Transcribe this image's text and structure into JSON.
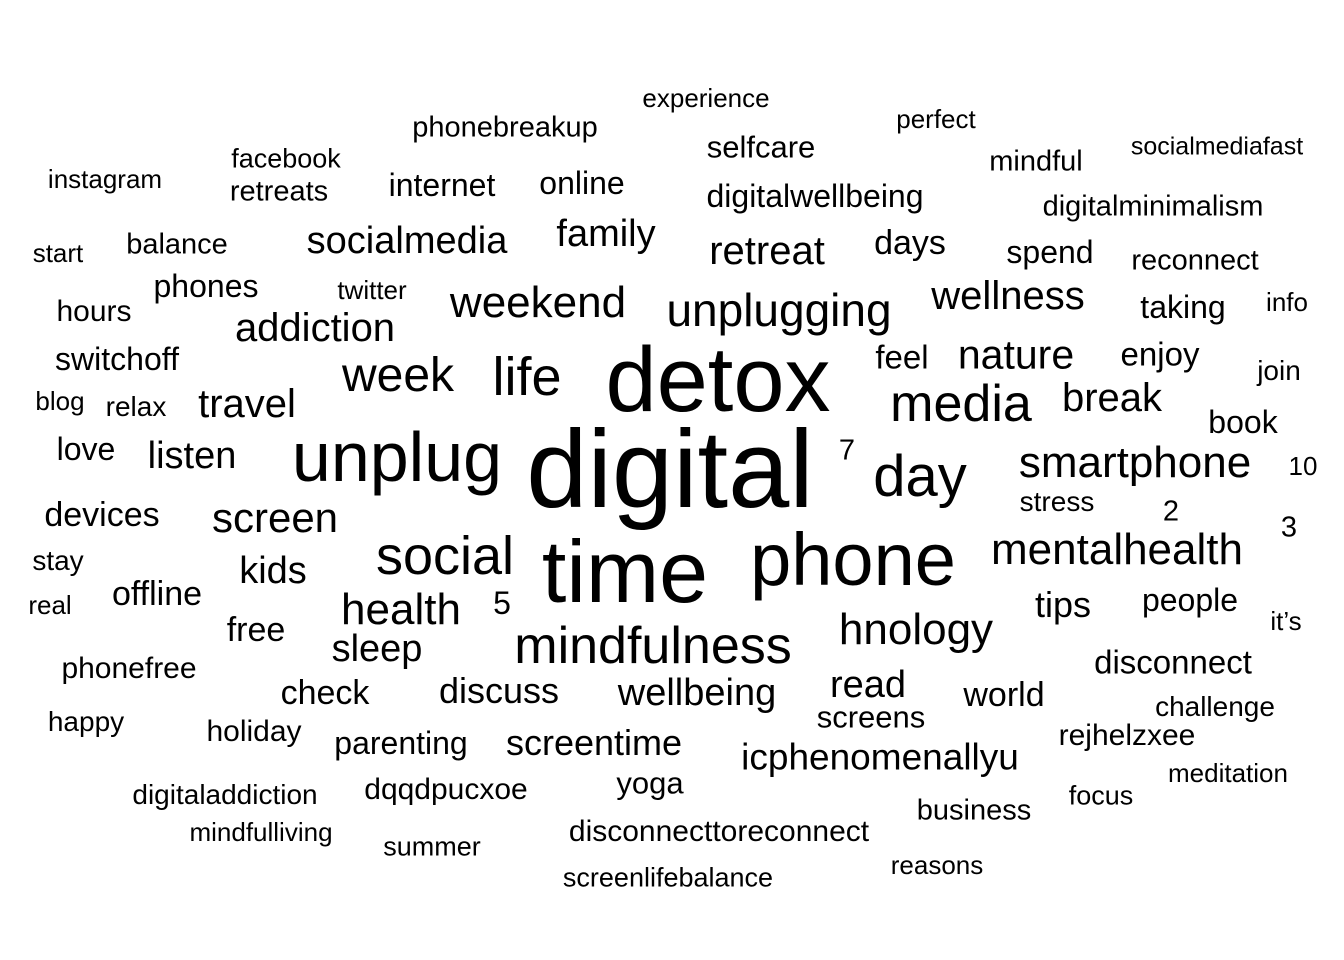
{
  "text_color": "#000000",
  "background": "#ffffff",
  "words": [
    {
      "text": "digital",
      "weight": 110
    },
    {
      "text": "detox",
      "weight": 92
    },
    {
      "text": "time",
      "weight": 88
    },
    {
      "text": "phone",
      "weight": 74
    },
    {
      "text": "unplug",
      "weight": 70
    },
    {
      "text": "social",
      "weight": 54
    },
    {
      "text": "day",
      "weight": 58
    },
    {
      "text": "life",
      "weight": 54
    },
    {
      "text": "media",
      "weight": 52
    },
    {
      "text": "mindfulness",
      "weight": 52
    },
    {
      "text": "week",
      "weight": 48
    },
    {
      "text": "unplugging",
      "weight": 46
    },
    {
      "text": "smartphone",
      "weight": 44
    },
    {
      "text": "mentalhealth",
      "weight": 44
    },
    {
      "text": "weekend",
      "weight": 44
    },
    {
      "text": "health",
      "weight": 44
    },
    {
      "text": "hnology",
      "weight": 44
    },
    {
      "text": "screen",
      "weight": 42
    },
    {
      "text": "nature",
      "weight": 41
    },
    {
      "text": "addiction",
      "weight": 40
    },
    {
      "text": "travel",
      "weight": 40
    },
    {
      "text": "break",
      "weight": 40
    },
    {
      "text": "wellness",
      "weight": 40
    },
    {
      "text": "retreat",
      "weight": 40
    },
    {
      "text": "wellbeing",
      "weight": 38
    },
    {
      "text": "sleep",
      "weight": 38
    },
    {
      "text": "family",
      "weight": 38
    },
    {
      "text": "socialmedia",
      "weight": 38
    },
    {
      "text": "icphenomenallyu",
      "weight": 37
    },
    {
      "text": "kids",
      "weight": 38
    },
    {
      "text": "read",
      "weight": 38
    },
    {
      "text": "listen",
      "weight": 38
    },
    {
      "text": "screentime",
      "weight": 36
    },
    {
      "text": "tips",
      "weight": 36
    },
    {
      "text": "days",
      "weight": 34
    },
    {
      "text": "discuss",
      "weight": 36
    },
    {
      "text": "offline",
      "weight": 34
    },
    {
      "text": "devices",
      "weight": 34
    },
    {
      "text": "world",
      "weight": 34
    },
    {
      "text": "disconnect",
      "weight": 33
    },
    {
      "text": "feel",
      "weight": 33
    },
    {
      "text": "check",
      "weight": 34
    },
    {
      "text": "free",
      "weight": 34
    },
    {
      "text": "enjoy",
      "weight": 33
    },
    {
      "text": "digitalwellbeing",
      "weight": 32
    },
    {
      "text": "screens",
      "weight": 31
    },
    {
      "text": "people",
      "weight": 32
    },
    {
      "text": "parenting",
      "weight": 32
    },
    {
      "text": "taking",
      "weight": 32
    },
    {
      "text": "spend",
      "weight": 32
    },
    {
      "text": "book",
      "weight": 32
    },
    {
      "text": "internet",
      "weight": 32
    },
    {
      "text": "online",
      "weight": 32
    },
    {
      "text": "switchoff",
      "weight": 32
    },
    {
      "text": "love",
      "weight": 32
    },
    {
      "text": "selfcare",
      "weight": 31
    },
    {
      "text": "phones",
      "weight": 32
    },
    {
      "text": "5",
      "weight": 32
    },
    {
      "text": "yoga",
      "weight": 31
    },
    {
      "text": "rejhelzxee",
      "weight": 30
    },
    {
      "text": "dqqdpucxoe",
      "weight": 30
    },
    {
      "text": "disconnecttoreconnect",
      "weight": 30
    },
    {
      "text": "phonebreakup",
      "weight": 29
    },
    {
      "text": "digitalminimalism",
      "weight": 29
    },
    {
      "text": "reconnect",
      "weight": 29
    },
    {
      "text": "phonefree",
      "weight": 30
    },
    {
      "text": "mindful",
      "weight": 29
    },
    {
      "text": "hours",
      "weight": 30
    },
    {
      "text": "balance",
      "weight": 29
    },
    {
      "text": "retreats",
      "weight": 29
    },
    {
      "text": "holiday",
      "weight": 30
    },
    {
      "text": "digitaladdiction",
      "weight": 28
    },
    {
      "text": "business",
      "weight": 29
    },
    {
      "text": "2",
      "weight": 29
    },
    {
      "text": "3",
      "weight": 29
    },
    {
      "text": "7",
      "weight": 29
    },
    {
      "text": "stay",
      "weight": 28
    },
    {
      "text": "happy",
      "weight": 28
    },
    {
      "text": "relax",
      "weight": 28
    },
    {
      "text": "join",
      "weight": 28
    },
    {
      "text": "challenge",
      "weight": 28
    },
    {
      "text": "stress",
      "weight": 28
    },
    {
      "text": "focus",
      "weight": 27
    },
    {
      "text": "facebook",
      "weight": 27
    },
    {
      "text": "real",
      "weight": 26
    },
    {
      "text": "10",
      "weight": 26
    },
    {
      "text": "summer",
      "weight": 27
    },
    {
      "text": "mindfulliving",
      "weight": 26
    },
    {
      "text": "screenlifebalance",
      "weight": 27
    },
    {
      "text": "reasons",
      "weight": 26
    },
    {
      "text": "meditation",
      "weight": 26
    },
    {
      "text": "blog",
      "weight": 26
    },
    {
      "text": "instagram",
      "weight": 26
    },
    {
      "text": "start",
      "weight": 26
    },
    {
      "text": "twitter",
      "weight": 26
    },
    {
      "text": "it’s",
      "weight": 26
    },
    {
      "text": "info",
      "weight": 26
    },
    {
      "text": "experience",
      "weight": 26
    },
    {
      "text": "perfect",
      "weight": 26
    },
    {
      "text": "socialmediafast",
      "weight": 25
    }
  ]
}
